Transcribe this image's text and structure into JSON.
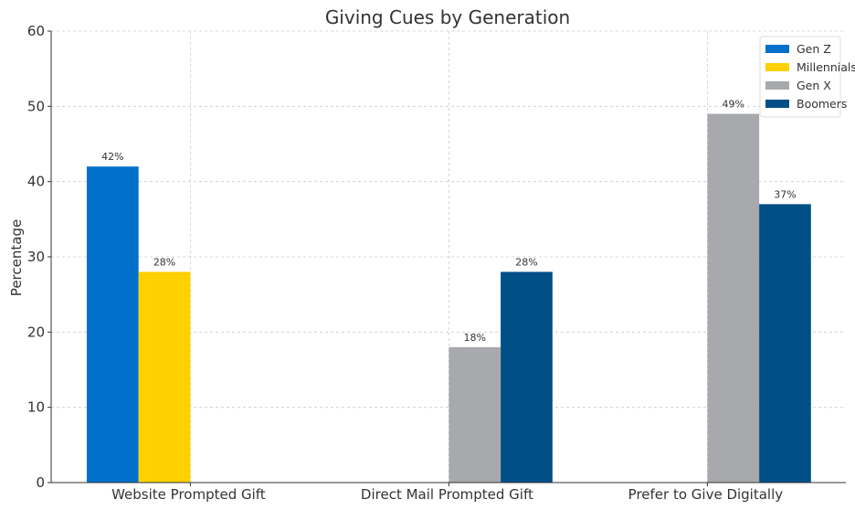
{
  "chart_data": {
    "type": "bar",
    "title": "Giving Cues by Generation",
    "xlabel": "",
    "ylabel": "Percentage",
    "ylim": [
      0,
      60
    ],
    "yticks": [
      0,
      10,
      20,
      30,
      40,
      50,
      60
    ],
    "grid": true,
    "legend_position": "top-right",
    "categories": [
      "Website Prompted Gift",
      "Direct Mail Prompted Gift",
      "Prefer to Give Digitally"
    ],
    "series": [
      {
        "name": "Gen Z",
        "color": "#0070cc",
        "values": [
          42,
          null,
          null
        ],
        "labels": [
          "42%",
          null,
          null
        ]
      },
      {
        "name": "Millennials",
        "color": "#ffd000",
        "values": [
          28,
          null,
          null
        ],
        "labels": [
          "28%",
          null,
          null
        ]
      },
      {
        "name": "Gen X",
        "color": "#a7a9ac",
        "values": [
          null,
          18,
          49
        ],
        "labels": [
          null,
          "18%",
          "49%"
        ]
      },
      {
        "name": "Boomers",
        "color": "#004f87",
        "values": [
          null,
          28,
          37
        ],
        "labels": [
          null,
          "28%",
          "37%"
        ]
      }
    ]
  }
}
